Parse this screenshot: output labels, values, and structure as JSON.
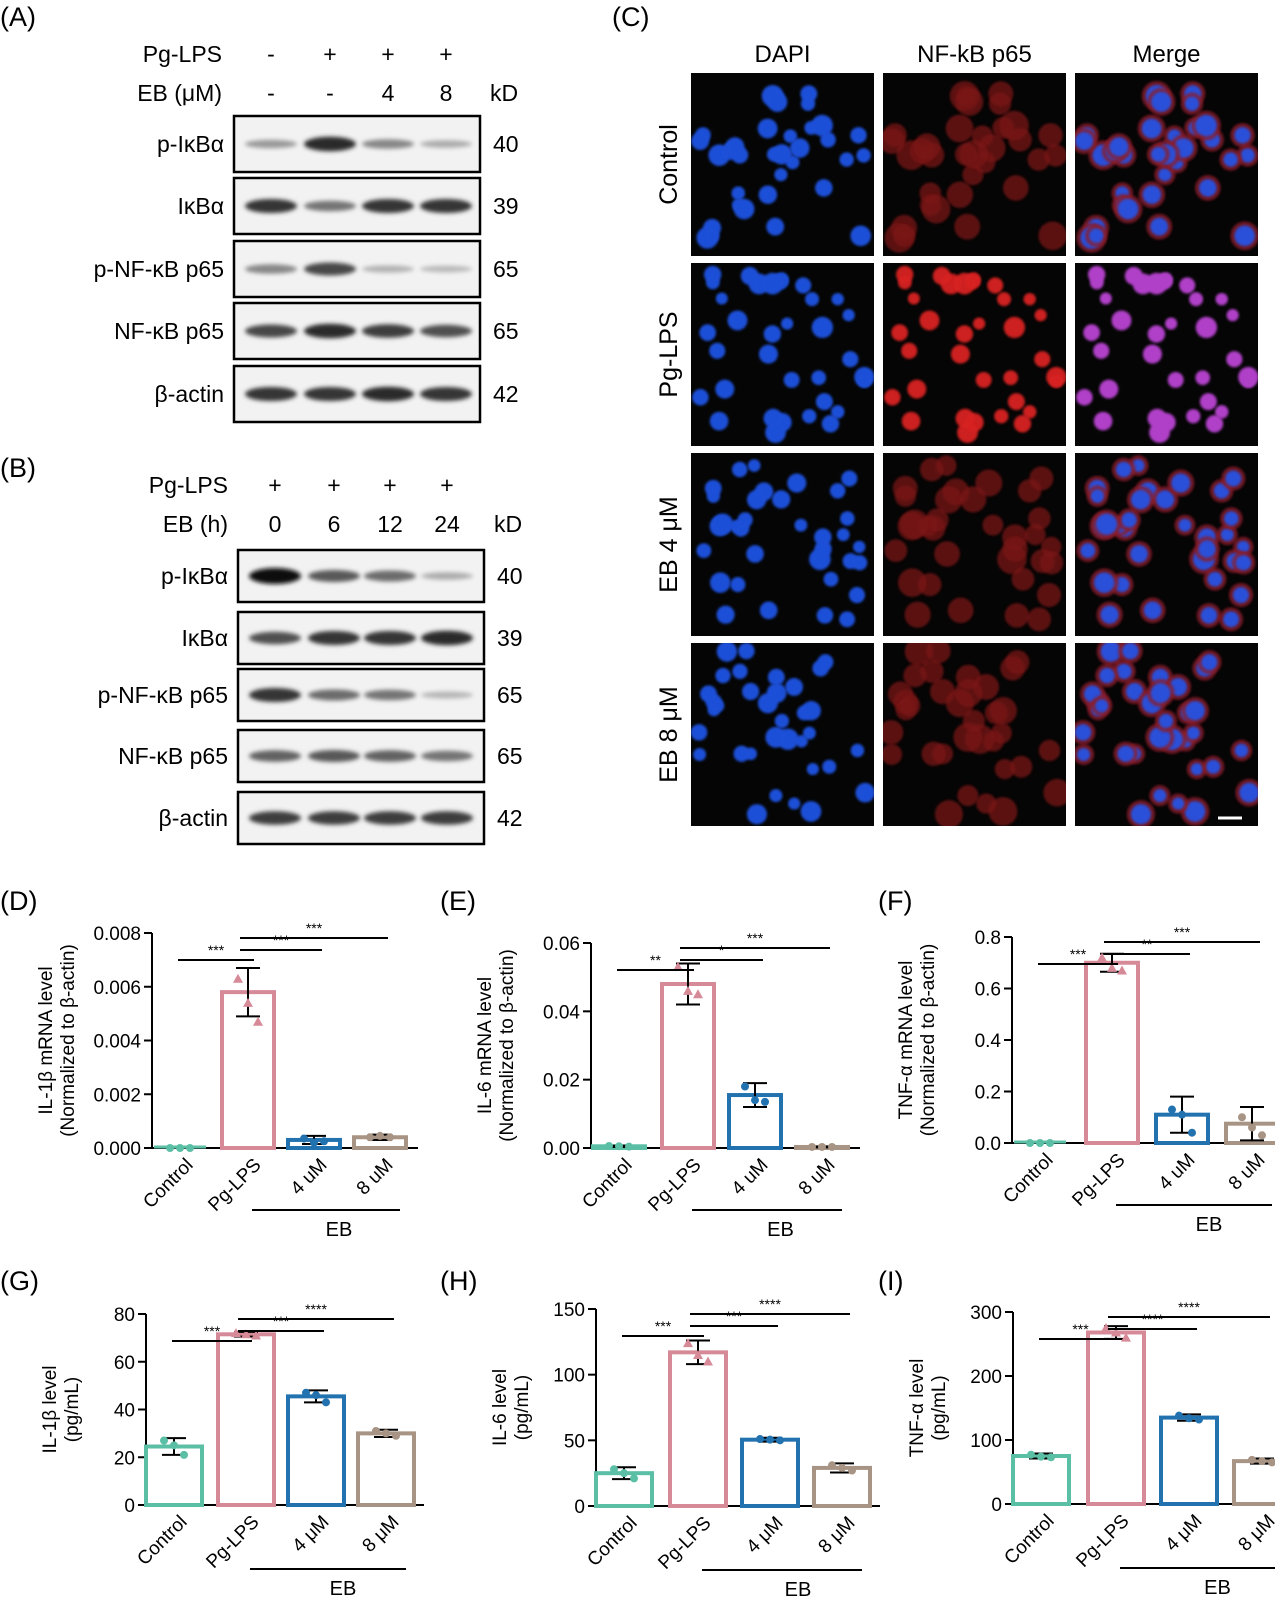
{
  "panelA": {
    "label": "(A)",
    "rows": [
      {
        "label": "Pg-LPS",
        "values": [
          "-",
          "+",
          "+",
          "+"
        ]
      },
      {
        "label": "EB (μM)",
        "values": [
          "-",
          "-",
          "4",
          "8"
        ],
        "unit": "kD"
      }
    ],
    "blots": [
      {
        "label": "p-IκBα",
        "kd": "40",
        "intensity": [
          0.25,
          0.85,
          0.35,
          0.15
        ]
      },
      {
        "label": "IκBα",
        "kd": "39",
        "intensity": [
          0.8,
          0.45,
          0.8,
          0.8
        ]
      },
      {
        "label": "p-NF-κB p65",
        "kd": "65",
        "intensity": [
          0.35,
          0.7,
          0.12,
          0.08
        ]
      },
      {
        "label": "NF-κB p65",
        "kd": "65",
        "intensity": [
          0.7,
          0.85,
          0.75,
          0.65
        ]
      },
      {
        "label": "β-actin",
        "kd": "42",
        "intensity": [
          0.8,
          0.8,
          0.85,
          0.8
        ]
      }
    ]
  },
  "panelB": {
    "label": "(B)",
    "rows": [
      {
        "label": "Pg-LPS",
        "values": [
          "+",
          "+",
          "+",
          "+"
        ]
      },
      {
        "label": "EB (h)",
        "values": [
          "0",
          "6",
          "12",
          "24"
        ],
        "unit": "kD"
      }
    ],
    "blots": [
      {
        "label": "p-IκBα",
        "kd": "40",
        "intensity": [
          1.0,
          0.6,
          0.5,
          0.15
        ]
      },
      {
        "label": "IκBα",
        "kd": "39",
        "intensity": [
          0.65,
          0.8,
          0.8,
          0.85
        ]
      },
      {
        "label": "p-NF-κB p65",
        "kd": "65",
        "intensity": [
          0.8,
          0.5,
          0.45,
          0.1
        ]
      },
      {
        "label": "NF-κB p65",
        "kd": "65",
        "intensity": [
          0.55,
          0.6,
          0.55,
          0.45
        ]
      },
      {
        "label": "β-actin",
        "kd": "42",
        "intensity": [
          0.75,
          0.75,
          0.75,
          0.75
        ]
      }
    ]
  },
  "panelC": {
    "label": "(C)",
    "columns": [
      "DAPI",
      "NF-kB p65",
      "Merge"
    ],
    "rows": [
      "Control",
      "Pg-LPS",
      "EB 4 μM",
      "EB 8 μM"
    ]
  },
  "chart_data": [
    {
      "panel": "(D)",
      "type": "bar",
      "ylabel": "IL-1β mRNA level",
      "ylabel2": "(Normalized to β-actin)",
      "ylim": [
        0,
        0.008
      ],
      "yticks": [
        "0.000",
        "0.002",
        "0.004",
        "0.006",
        "0.008"
      ],
      "categories": [
        "Control",
        "Pg-LPS",
        "4 uM",
        "8 uM"
      ],
      "group_label": "EB",
      "values": [
        0.0,
        0.0058,
        0.0003,
        0.0004
      ],
      "errors": [
        0.0,
        0.0009,
        0.00015,
        0.0001
      ],
      "points": [
        [
          0.0,
          0.0,
          0.0
        ],
        [
          0.0063,
          0.0054,
          0.0047
        ],
        [
          0.00035,
          0.0002,
          0.00025
        ],
        [
          0.0004,
          0.00045,
          0.0004
        ]
      ],
      "sig": [
        {
          "from": 0,
          "to": 1,
          "label": "***"
        },
        {
          "from": 1,
          "to": 2,
          "label": "***"
        },
        {
          "from": 1,
          "to": 3,
          "label": "***"
        }
      ]
    },
    {
      "panel": "(E)",
      "type": "bar",
      "ylabel": "IL-6 mRNA level",
      "ylabel2": "(Normalized to β-actin)",
      "ylim": [
        0,
        0.06
      ],
      "yticks": [
        "0.00",
        "0.02",
        "0.04",
        "0.06"
      ],
      "categories": [
        "Control",
        "Pg-LPS",
        "4 uM",
        "8 uM"
      ],
      "group_label": "EB",
      "values": [
        0.0005,
        0.048,
        0.0155,
        0.0003
      ],
      "errors": [
        0.0002,
        0.006,
        0.0035,
        0.0001
      ],
      "points": [
        [
          0.0006,
          0.0005,
          0.0004
        ],
        [
          0.053,
          0.046,
          0.045
        ],
        [
          0.018,
          0.014,
          0.0135
        ],
        [
          0.0003,
          0.0003,
          0.0003
        ]
      ],
      "sig": [
        {
          "from": 0,
          "to": 1,
          "label": "**"
        },
        {
          "from": 1,
          "to": 2,
          "label": "*"
        },
        {
          "from": 1,
          "to": 3,
          "label": "***"
        }
      ]
    },
    {
      "panel": "(F)",
      "type": "bar",
      "ylabel": "TNF-α mRNA level",
      "ylabel2": "(Normalized to β-actin)",
      "ylim": [
        0,
        0.8
      ],
      "yticks": [
        "0.0",
        "0.2",
        "0.4",
        "0.6",
        "0.8"
      ],
      "categories": [
        "Control",
        "Pg-LPS",
        "4 uM",
        "8 uM"
      ],
      "group_label": "EB",
      "values": [
        0.0,
        0.7,
        0.11,
        0.075
      ],
      "errors": [
        0.0,
        0.035,
        0.07,
        0.065
      ],
      "points": [
        [
          0.0,
          0.0,
          0.0
        ],
        [
          0.72,
          0.68,
          0.67
        ],
        [
          0.13,
          0.11,
          0.04
        ],
        [
          0.1,
          0.06,
          0.03
        ]
      ],
      "sig": [
        {
          "from": 0,
          "to": 1,
          "label": "***"
        },
        {
          "from": 1,
          "to": 2,
          "label": "**"
        },
        {
          "from": 1,
          "to": 3,
          "label": "***"
        }
      ]
    },
    {
      "panel": "(G)",
      "type": "bar",
      "ylabel": "IL-1β level",
      "ylabel2": "(pg/mL)",
      "ylim": [
        0,
        80
      ],
      "yticks": [
        "0",
        "20",
        "40",
        "60",
        "80"
      ],
      "categories": [
        "Control",
        "Pg-LPS",
        "4 μM",
        "8 μM"
      ],
      "group_label": "EB",
      "values": [
        24.5,
        71.5,
        45.5,
        30
      ],
      "errors": [
        3.5,
        1.0,
        2.5,
        1.5
      ],
      "points": [
        [
          27,
          25,
          21
        ],
        [
          72,
          71.5,
          71
        ],
        [
          47,
          46,
          43
        ],
        [
          31,
          30,
          29
        ]
      ],
      "sig": [
        {
          "from": 0,
          "to": 1,
          "label": "***"
        },
        {
          "from": 1,
          "to": 2,
          "label": "***"
        },
        {
          "from": 1,
          "to": 3,
          "label": "****"
        }
      ]
    },
    {
      "panel": "(H)",
      "type": "bar",
      "ylabel": "IL-6 level",
      "ylabel2": "(pg/mL)",
      "ylim": [
        0,
        150
      ],
      "yticks": [
        "0",
        "50",
        "100",
        "150"
      ],
      "categories": [
        "Control",
        "Pg-LPS",
        "4 μM",
        "8 μM"
      ],
      "group_label": "EB",
      "values": [
        25,
        117,
        50.5,
        29
      ],
      "errors": [
        4.5,
        9,
        1.5,
        3.5
      ],
      "points": [
        [
          28,
          25,
          21
        ],
        [
          124,
          115,
          110
        ],
        [
          51,
          50.5,
          50
        ],
        [
          31,
          29,
          27
        ]
      ],
      "sig": [
        {
          "from": 0,
          "to": 1,
          "label": "***"
        },
        {
          "from": 1,
          "to": 2,
          "label": "***"
        },
        {
          "from": 1,
          "to": 3,
          "label": "****"
        }
      ]
    },
    {
      "panel": "(I)",
      "type": "bar",
      "ylabel": "TNF-α level",
      "ylabel2": "(pg/mL)",
      "ylim": [
        0,
        300
      ],
      "yticks": [
        "0",
        "100",
        "200",
        "300"
      ],
      "categories": [
        "Control",
        "Pg-LPS",
        "4 μM",
        "8 μM"
      ],
      "group_label": "EB",
      "values": [
        75,
        268,
        135,
        67
      ],
      "errors": [
        4,
        10,
        5,
        4
      ],
      "points": [
        [
          77,
          74,
          73
        ],
        [
          275,
          268,
          260
        ],
        [
          138,
          134,
          132
        ],
        [
          69,
          67,
          65
        ]
      ],
      "sig": [
        {
          "from": 0,
          "to": 1,
          "label": "***"
        },
        {
          "from": 1,
          "to": 2,
          "label": "****"
        },
        {
          "from": 1,
          "to": 3,
          "label": "****"
        }
      ]
    }
  ],
  "colors": {
    "control": "#5bbfa5",
    "pglps": "#d68a98",
    "eb4": "#2272b0",
    "eb8": "#a89484"
  }
}
